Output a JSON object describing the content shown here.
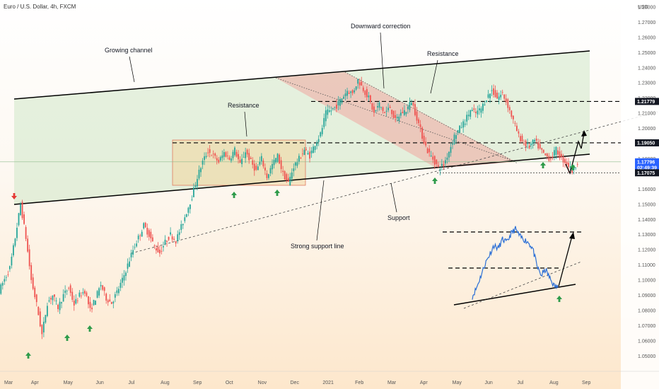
{
  "chart_data": {
    "type": "candlestick",
    "title": "Euro / U.S. Dollar, 4h, FXCM",
    "currency": "USD",
    "x_labels": [
      "Mar",
      "Apr",
      "May",
      "Jun",
      "Jul",
      "Aug",
      "Sep",
      "Oct",
      "Nov",
      "Dec",
      "2021",
      "Feb",
      "Mar",
      "Apr",
      "May",
      "Jun",
      "Jul",
      "Aug",
      "Sep"
    ],
    "y_ticks": [
      "1.28000",
      "1.27000",
      "1.26000",
      "1.25000",
      "1.24000",
      "1.23000",
      "1.22000",
      "1.21000",
      "1.20000",
      "1.19000",
      "1.18000",
      "1.17000",
      "1.16000",
      "1.15000",
      "1.14000",
      "1.13000",
      "1.12000",
      "1.11000",
      "1.10000",
      "1.09000",
      "1.08000",
      "1.07000",
      "1.06000",
      "1.05000"
    ],
    "ylim": [
      1.045,
      1.28
    ],
    "price_tags": [
      {
        "value": 1.21779,
        "label": "1.21779",
        "color": "#131722"
      },
      {
        "value": 1.1905,
        "label": "1.19050",
        "color": "#131722"
      },
      {
        "value": 1.17796,
        "label": "1.17796",
        "sub": "02:49:39",
        "color": "#2962ff"
      },
      {
        "value": 1.17075,
        "label": "1.17075",
        "color": "#131722"
      }
    ],
    "annotations": {
      "growing_channel": "Growing channel",
      "resistance_1": "Resistance",
      "downward_correction": "Downward correction",
      "resistance_2": "Resistance",
      "support": "Support",
      "strong_support": "Strong support line"
    },
    "price_path": [
      [
        0,
        1.093
      ],
      [
        2,
        1.108
      ],
      [
        3,
        1.128
      ],
      [
        4,
        1.15
      ],
      [
        5,
        1.128
      ],
      [
        6,
        1.1
      ],
      [
        7,
        1.084
      ],
      [
        8,
        1.064
      ],
      [
        9,
        1.085
      ],
      [
        10,
        1.09
      ],
      [
        11,
        1.082
      ],
      [
        12,
        1.09
      ],
      [
        13,
        1.095
      ],
      [
        14,
        1.084
      ],
      [
        15,
        1.09
      ],
      [
        16,
        1.093
      ],
      [
        17,
        1.08
      ],
      [
        18,
        1.088
      ],
      [
        19,
        1.097
      ],
      [
        20,
        1.088
      ],
      [
        21,
        1.085
      ],
      [
        22,
        1.092
      ],
      [
        23,
        1.1
      ],
      [
        24,
        1.11
      ],
      [
        25,
        1.12
      ],
      [
        26,
        1.128
      ],
      [
        27,
        1.136
      ],
      [
        28,
        1.13
      ],
      [
        29,
        1.122
      ],
      [
        30,
        1.118
      ],
      [
        31,
        1.125
      ],
      [
        32,
        1.13
      ],
      [
        33,
        1.126
      ],
      [
        34,
        1.135
      ],
      [
        35,
        1.145
      ],
      [
        36,
        1.155
      ],
      [
        37,
        1.168
      ],
      [
        38,
        1.178
      ],
      [
        39,
        1.185
      ],
      [
        40,
        1.182
      ],
      [
        41,
        1.178
      ],
      [
        42,
        1.184
      ],
      [
        43,
        1.18
      ],
      [
        44,
        1.186
      ],
      [
        45,
        1.176
      ],
      [
        46,
        1.185
      ],
      [
        47,
        1.178
      ],
      [
        48,
        1.172
      ],
      [
        49,
        1.18
      ],
      [
        50,
        1.168
      ],
      [
        51,
        1.176
      ],
      [
        52,
        1.182
      ],
      [
        53,
        1.17
      ],
      [
        54,
        1.164
      ],
      [
        55,
        1.175
      ],
      [
        56,
        1.18
      ],
      [
        57,
        1.186
      ],
      [
        58,
        1.182
      ],
      [
        59,
        1.19
      ],
      [
        60,
        1.196
      ],
      [
        61,
        1.21
      ],
      [
        62,
        1.212
      ],
      [
        63,
        1.215
      ],
      [
        64,
        1.22
      ],
      [
        65,
        1.225
      ],
      [
        66,
        1.223
      ],
      [
        67,
        1.232
      ],
      [
        68,
        1.226
      ],
      [
        69,
        1.22
      ],
      [
        70,
        1.21
      ],
      [
        71,
        1.216
      ],
      [
        72,
        1.21
      ],
      [
        73,
        1.214
      ],
      [
        74,
        1.205
      ],
      [
        75,
        1.21
      ],
      [
        76,
        1.212
      ],
      [
        77,
        1.218
      ],
      [
        78,
        1.207
      ],
      [
        79,
        1.195
      ],
      [
        80,
        1.185
      ],
      [
        81,
        1.18
      ],
      [
        82,
        1.174
      ],
      [
        83,
        1.176
      ],
      [
        84,
        1.185
      ],
      [
        85,
        1.195
      ],
      [
        86,
        1.2
      ],
      [
        87,
        1.205
      ],
      [
        88,
        1.212
      ],
      [
        89,
        1.21
      ],
      [
        90,
        1.213
      ],
      [
        91,
        1.22
      ],
      [
        92,
        1.225
      ],
      [
        93,
        1.22
      ],
      [
        94,
        1.223
      ],
      [
        95,
        1.215
      ],
      [
        96,
        1.205
      ],
      [
        97,
        1.195
      ],
      [
        98,
        1.19
      ],
      [
        99,
        1.188
      ],
      [
        100,
        1.192
      ],
      [
        101,
        1.186
      ],
      [
        102,
        1.182
      ],
      [
        103,
        1.18
      ],
      [
        104,
        1.186
      ],
      [
        105,
        1.18
      ],
      [
        106,
        1.177
      ],
      [
        107,
        1.172
      ],
      [
        108,
        1.178
      ]
    ],
    "inset_path": [
      [
        0,
        1.09
      ],
      [
        3,
        1.096
      ],
      [
        6,
        1.104
      ],
      [
        9,
        1.112
      ],
      [
        12,
        1.118
      ],
      [
        15,
        1.124
      ],
      [
        18,
        1.122
      ],
      [
        21,
        1.128
      ],
      [
        24,
        1.126
      ],
      [
        27,
        1.132
      ],
      [
        30,
        1.135
      ],
      [
        33,
        1.13
      ],
      [
        36,
        1.128
      ],
      [
        39,
        1.126
      ],
      [
        42,
        1.122
      ],
      [
        45,
        1.11
      ],
      [
        48,
        1.104
      ],
      [
        51,
        1.108
      ],
      [
        54,
        1.102
      ],
      [
        57,
        1.097
      ],
      [
        60,
        1.096
      ]
    ]
  }
}
